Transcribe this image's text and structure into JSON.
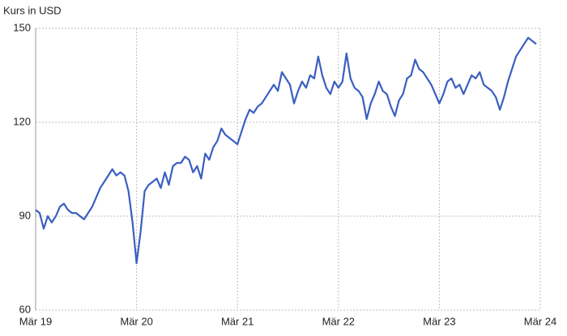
{
  "chart_data": {
    "type": "line",
    "y_label": "Kurs in USD",
    "x": [
      2019.17,
      2019.21,
      2019.25,
      2019.29,
      2019.33,
      2019.37,
      2019.41,
      2019.45,
      2019.49,
      2019.53,
      2019.57,
      2019.61,
      2019.65,
      2019.69,
      2019.73,
      2019.77,
      2019.81,
      2019.85,
      2019.89,
      2019.93,
      2019.97,
      2020.01,
      2020.05,
      2020.09,
      2020.13,
      2020.17,
      2020.21,
      2020.25,
      2020.29,
      2020.33,
      2020.37,
      2020.41,
      2020.45,
      2020.49,
      2020.53,
      2020.57,
      2020.61,
      2020.65,
      2020.69,
      2020.73,
      2020.77,
      2020.81,
      2020.85,
      2020.89,
      2020.93,
      2020.97,
      2021.01,
      2021.05,
      2021.09,
      2021.13,
      2021.17,
      2021.21,
      2021.25,
      2021.29,
      2021.33,
      2021.37,
      2021.41,
      2021.45,
      2021.49,
      2021.53,
      2021.57,
      2021.61,
      2021.65,
      2021.69,
      2021.73,
      2021.77,
      2021.81,
      2021.85,
      2021.89,
      2021.93,
      2021.97,
      2022.01,
      2022.05,
      2022.09,
      2022.13,
      2022.17,
      2022.21,
      2022.25,
      2022.29,
      2022.33,
      2022.37,
      2022.41,
      2022.45,
      2022.49,
      2022.53,
      2022.57,
      2022.61,
      2022.65,
      2022.69,
      2022.73,
      2022.77,
      2022.81,
      2022.85,
      2022.89,
      2022.93,
      2022.97,
      2023.01,
      2023.05,
      2023.09,
      2023.13,
      2023.17,
      2023.21,
      2023.25,
      2023.29,
      2023.33,
      2023.37,
      2023.41,
      2023.45,
      2023.49,
      2023.53,
      2023.57,
      2023.61,
      2023.65,
      2023.69,
      2023.73,
      2023.77,
      2023.81,
      2023.85,
      2023.89,
      2023.93,
      2023.97,
      2024.01,
      2024.05,
      2024.09,
      2024.13
    ],
    "series": [
      {
        "color": "#3a5fc0",
        "values": [
          92,
          91,
          86,
          90,
          88,
          90,
          93,
          94,
          92,
          91,
          91,
          90,
          89,
          91,
          93,
          96,
          99,
          101,
          103,
          105,
          103,
          104,
          103,
          98,
          88,
          75,
          85,
          98,
          100,
          101,
          102,
          99,
          104,
          100,
          106,
          107,
          107,
          109,
          108,
          104,
          106,
          102,
          110,
          108,
          112,
          114,
          118,
          116,
          115,
          114,
          113,
          117,
          121,
          124,
          123,
          125,
          126,
          128,
          130,
          132,
          130,
          136,
          134,
          132,
          126,
          130,
          133,
          131,
          135,
          134,
          141,
          135,
          131,
          129,
          133,
          131,
          133,
          142,
          134,
          131,
          130,
          128,
          121,
          126,
          129,
          133,
          130,
          129,
          125,
          122,
          127,
          129,
          134,
          135,
          140,
          137,
          136,
          134,
          132,
          129,
          126,
          129,
          133,
          134,
          131,
          132,
          129,
          132,
          135,
          134,
          136,
          132,
          131,
          130,
          128,
          124,
          128,
          133,
          137,
          141,
          143,
          145,
          147,
          146,
          145
        ]
      }
    ],
    "xlim": [
      2019.17,
      2024.17
    ],
    "xticks": [
      {
        "value": 2019.17,
        "label": "Mär 19"
      },
      {
        "value": 2020.17,
        "label": "Mär 20"
      },
      {
        "value": 2021.17,
        "label": "Mär 21"
      },
      {
        "value": 2022.17,
        "label": "Mär 22"
      },
      {
        "value": 2023.17,
        "label": "Mär 23"
      },
      {
        "value": 2024.17,
        "label": "Mär 24"
      }
    ],
    "ylim": [
      60,
      150
    ],
    "yticks": [
      60,
      90,
      120,
      150
    ],
    "grid": true
  }
}
